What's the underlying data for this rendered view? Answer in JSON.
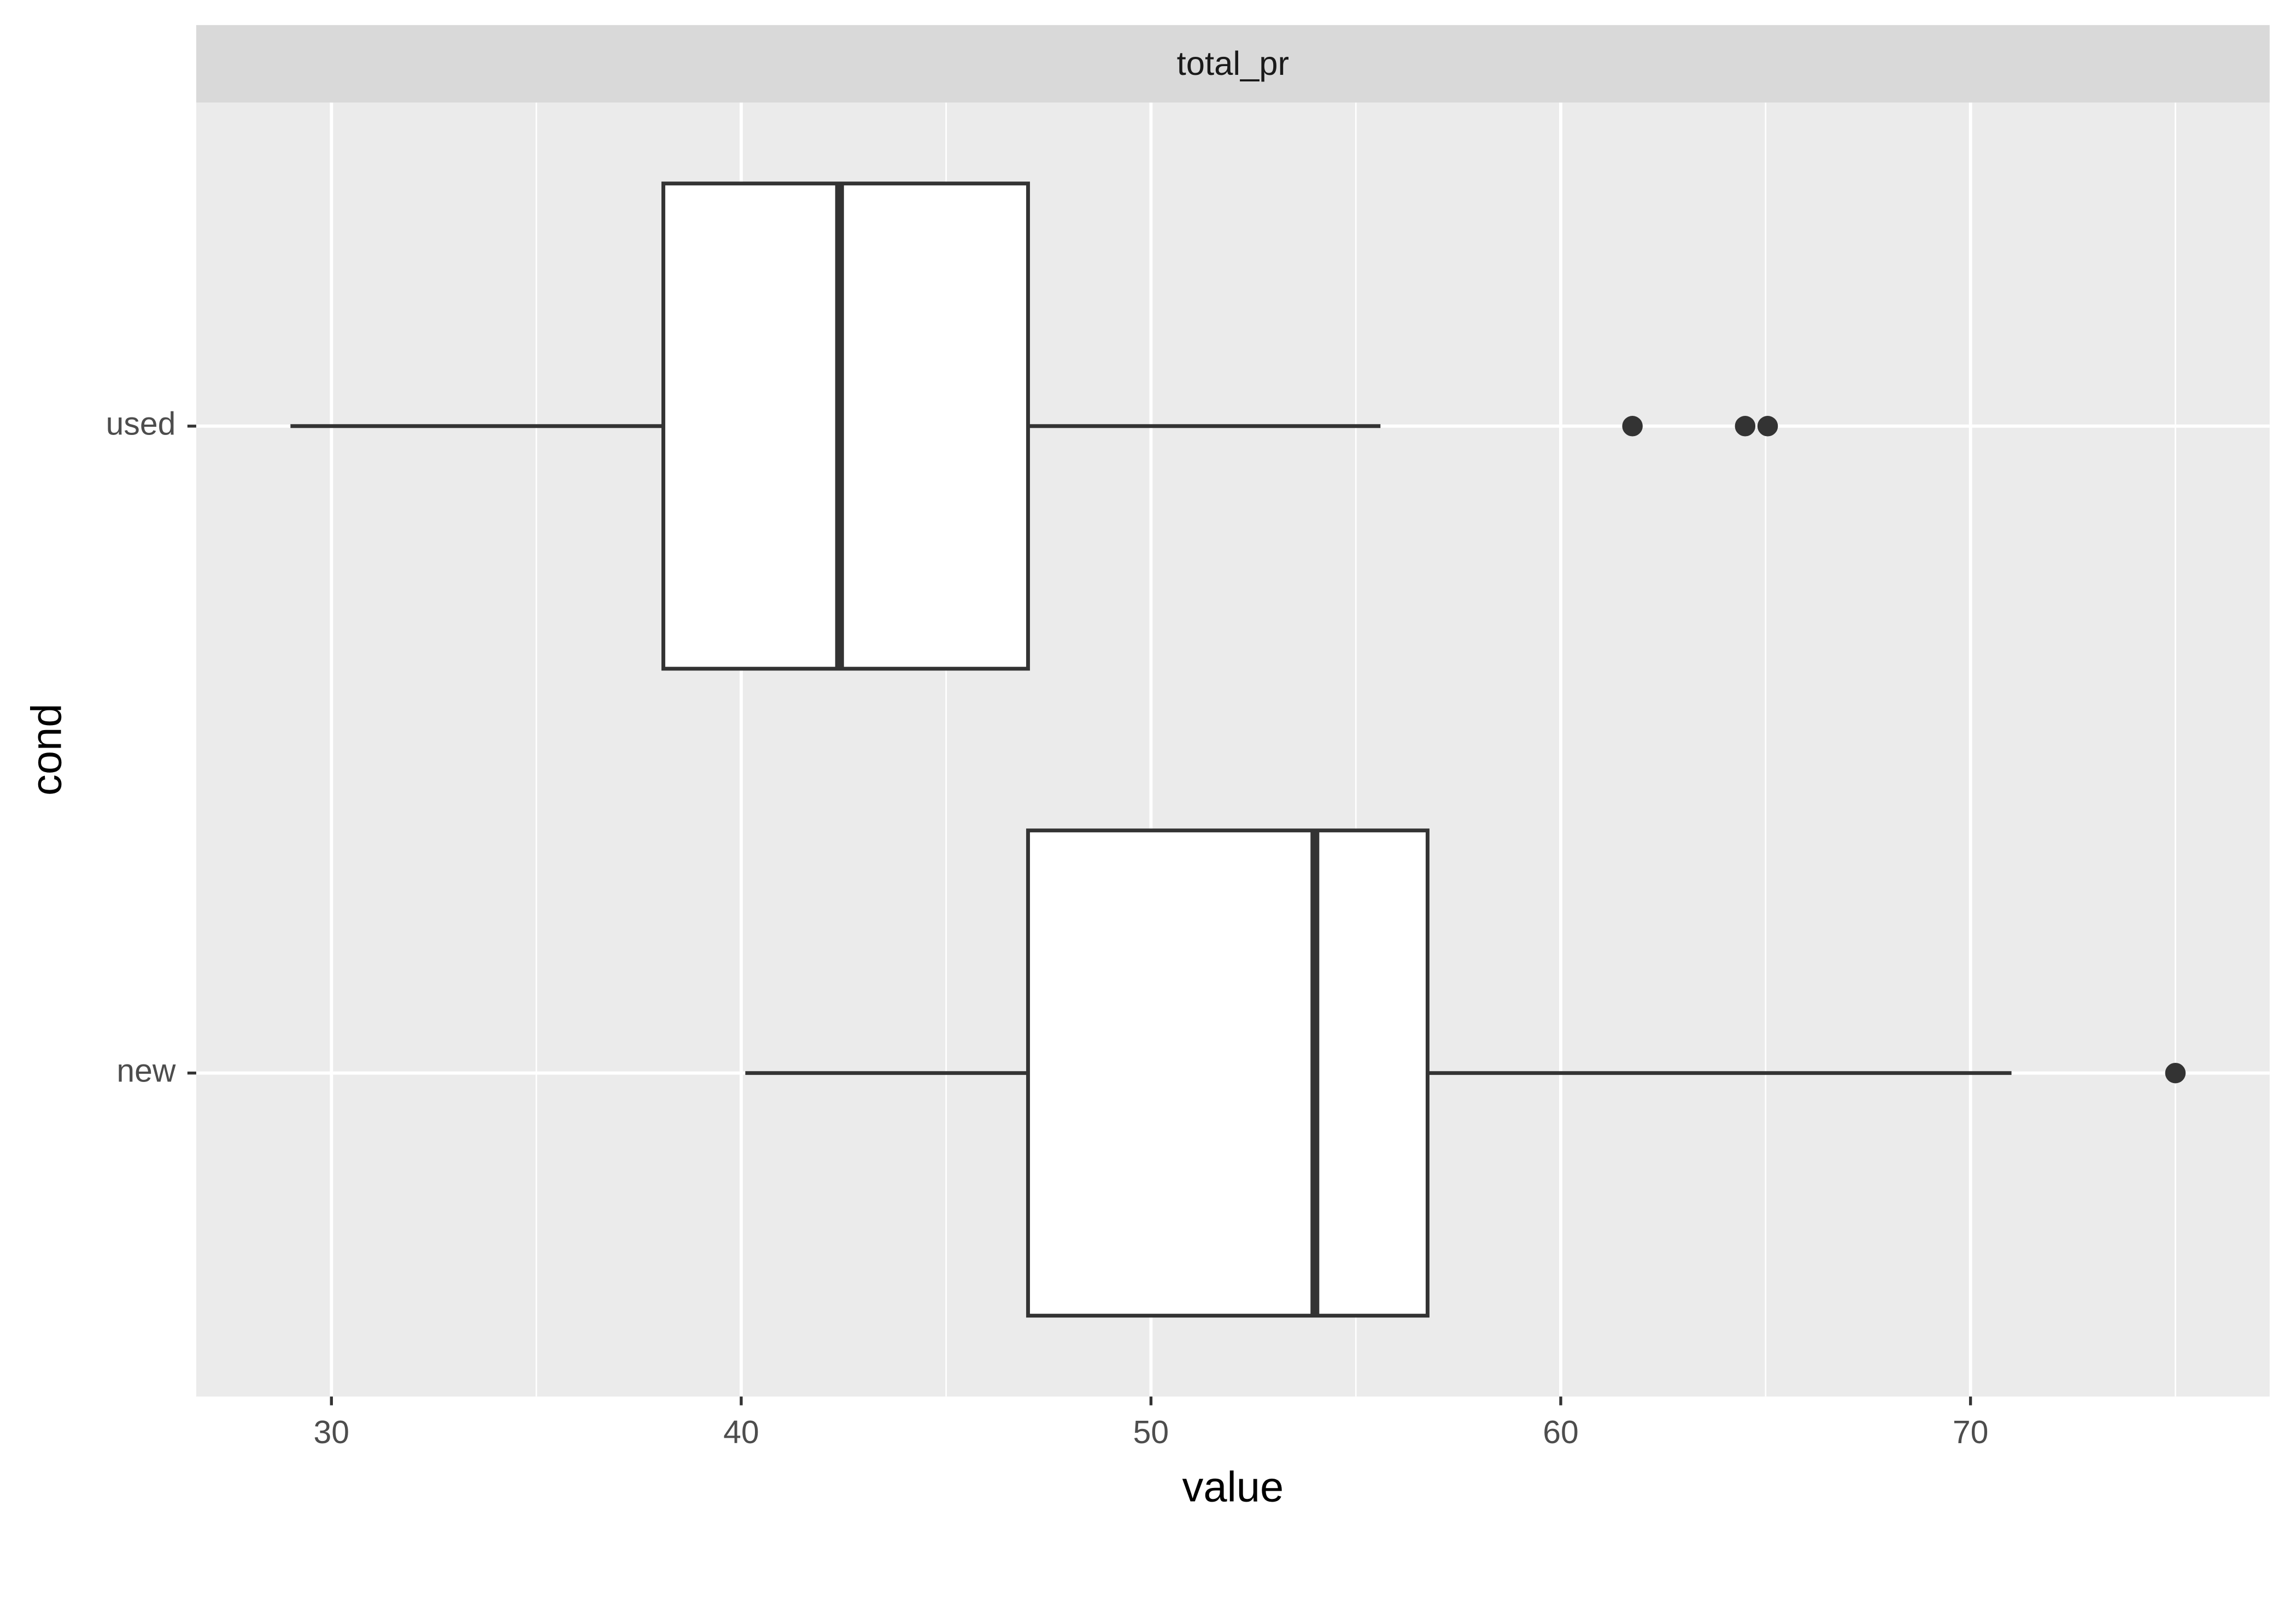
{
  "chart_data": {
    "type": "boxplot",
    "orientation": "horizontal",
    "facet": "total_pr",
    "x_label": "value",
    "y_label": "cond",
    "categories": [
      "used",
      "new"
    ],
    "boxes": [
      {
        "min": 29.0,
        "q1": 38.1,
        "median": 42.4,
        "q3": 47.0,
        "max": 55.6,
        "outliers": [
          61.75,
          64.5,
          65.05
        ]
      },
      {
        "min": 40.1,
        "q1": 47.0,
        "median": 54.0,
        "q3": 56.75,
        "max": 71.0,
        "outliers": [
          75.0
        ]
      }
    ],
    "color": "#333333",
    "fill": "#ffffff",
    "xlim": [
      26.7,
      77.3
    ],
    "xticks": [
      30,
      40,
      50,
      60,
      70
    ],
    "grid": true
  }
}
